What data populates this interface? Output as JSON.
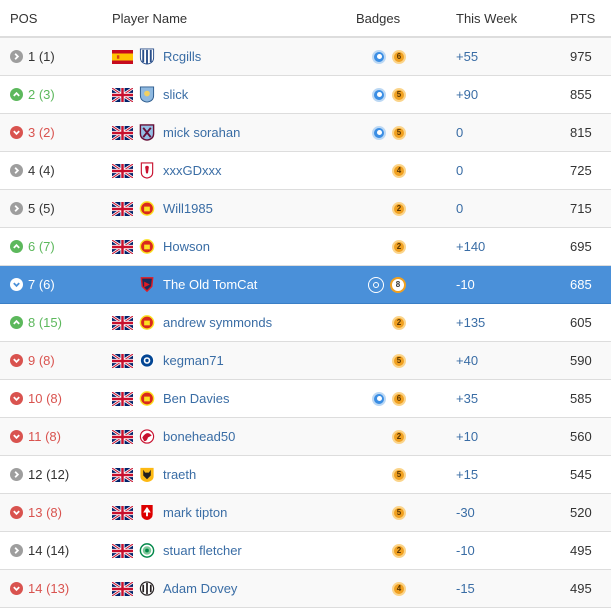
{
  "headers": {
    "pos": "POS",
    "player": "Player Name",
    "badges": "Badges",
    "week": "This Week",
    "pts": "PTS"
  },
  "colors": {
    "highlight": "#4a90d9",
    "up": "#5cb85c",
    "down": "#d9534f",
    "same": "#9e9e9e",
    "link": "#3a6da5",
    "badge": "#f0a020",
    "badge_blue": "#3b8ee4"
  },
  "rows": [
    {
      "pos": "1 (1)",
      "trend": "same",
      "flag": "spain-flag",
      "crest": "crest-stripes",
      "player": "Rcgills",
      "badge_blue": true,
      "badge_num": "6",
      "week": "+55",
      "pts": "975"
    },
    {
      "pos": "2 (3)",
      "trend": "up",
      "flag": "uk-flag",
      "crest": "crest-shield-blue",
      "player": "slick",
      "badge_blue": true,
      "badge_num": "5",
      "week": "+90",
      "pts": "855"
    },
    {
      "pos": "3 (2)",
      "trend": "down",
      "flag": "uk-flag",
      "crest": "crest-claret",
      "player": "mick sorahan",
      "badge_blue": true,
      "badge_num": "5",
      "week": "0",
      "pts": "815"
    },
    {
      "pos": "4 (4)",
      "trend": "same",
      "flag": "uk-flag",
      "crest": "crest-liver",
      "player": "xxxGDxxx",
      "badge_blue": false,
      "badge_num": "4",
      "week": "0",
      "pts": "725"
    },
    {
      "pos": "5 (5)",
      "trend": "same",
      "flag": "uk-flag",
      "crest": "crest-red",
      "player": "Will1985",
      "badge_blue": false,
      "badge_num": "2",
      "week": "0",
      "pts": "715"
    },
    {
      "pos": "6 (7)",
      "trend": "up",
      "flag": "uk-flag",
      "crest": "crest-red",
      "player": "Howson",
      "badge_blue": false,
      "badge_num": "2",
      "week": "+140",
      "pts": "695"
    },
    {
      "pos": "7 (6)",
      "trend": "down",
      "flag": "",
      "crest": "crest-navy-red",
      "player": "The Old TomCat",
      "badge_blue": true,
      "badge_num": "8",
      "week": "-10",
      "pts": "685",
      "highlight": true
    },
    {
      "pos": "8 (15)",
      "trend": "up",
      "flag": "uk-flag",
      "crest": "crest-red",
      "player": "andrew symmonds",
      "badge_blue": false,
      "badge_num": "2",
      "week": "+135",
      "pts": "605"
    },
    {
      "pos": "9 (8)",
      "trend": "down",
      "flag": "uk-flag",
      "crest": "crest-blue-round",
      "player": "kegman71",
      "badge_blue": false,
      "badge_num": "5",
      "week": "+40",
      "pts": "590"
    },
    {
      "pos": "10 (8)",
      "trend": "down",
      "flag": "uk-flag",
      "crest": "crest-red",
      "player": "Ben Davies",
      "badge_blue": true,
      "badge_num": "6",
      "week": "+35",
      "pts": "585"
    },
    {
      "pos": "11 (8)",
      "trend": "down",
      "flag": "uk-flag",
      "crest": "crest-bird-red",
      "player": "bonehead50",
      "badge_blue": false,
      "badge_num": "2",
      "week": "+10",
      "pts": "560"
    },
    {
      "pos": "12 (12)",
      "trend": "same",
      "flag": "uk-flag",
      "crest": "crest-wolf",
      "player": "traeth",
      "badge_blue": false,
      "badge_num": "5",
      "week": "+15",
      "pts": "545"
    },
    {
      "pos": "13 (8)",
      "trend": "down",
      "flag": "uk-flag",
      "crest": "crest-tree-red",
      "player": "mark tipton",
      "badge_blue": false,
      "badge_num": "5",
      "week": "-30",
      "pts": "520"
    },
    {
      "pos": "14 (14)",
      "trend": "same",
      "flag": "uk-flag",
      "crest": "crest-green-round",
      "player": "stuart fletcher",
      "badge_blue": false,
      "badge_num": "2",
      "week": "-10",
      "pts": "495"
    },
    {
      "pos": "14 (13)",
      "trend": "down",
      "flag": "uk-flag",
      "crest": "crest-magpie",
      "player": "Adam Dovey",
      "badge_blue": false,
      "badge_num": "4",
      "week": "-15",
      "pts": "495"
    }
  ]
}
